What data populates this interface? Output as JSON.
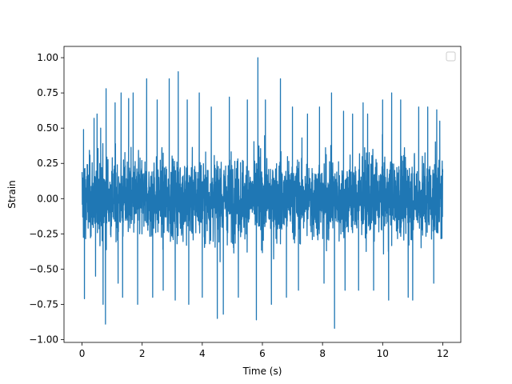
{
  "chart_data": {
    "type": "line",
    "title": "",
    "xlabel": "Time (s)",
    "ylabel": "Strain",
    "xlim": [
      -0.6,
      12.6
    ],
    "ylim": [
      -1.02,
      1.08
    ],
    "xticks": [
      0,
      2,
      4,
      6,
      8,
      10,
      12
    ],
    "xtick_labels": [
      "0",
      "2",
      "4",
      "6",
      "8",
      "10",
      "12"
    ],
    "yticks": [
      -1.0,
      -0.75,
      -0.5,
      -0.25,
      0.0,
      0.25,
      0.5,
      0.75,
      1.0
    ],
    "ytick_labels": [
      "−1.00",
      "−0.75",
      "−0.50",
      "−0.25",
      "0.00",
      "0.25",
      "0.50",
      "0.75",
      "1.00"
    ],
    "grid": false,
    "legend": {
      "position": "upper right",
      "entries": []
    },
    "series": [
      {
        "color": "#1f77b4",
        "x_range": [
          0,
          12
        ],
        "envelope": {
          "typical_upper": 0.5,
          "typical_lower": -0.5,
          "center": 0.0
        },
        "peaks": [
          {
            "x": 0.05,
            "y": 0.49
          },
          {
            "x": 0.08,
            "y": -0.71
          },
          {
            "x": 0.4,
            "y": 0.57
          },
          {
            "x": 0.45,
            "y": -0.55
          },
          {
            "x": 0.5,
            "y": 0.6
          },
          {
            "x": 0.62,
            "y": 0.5
          },
          {
            "x": 0.7,
            "y": -0.75
          },
          {
            "x": 0.78,
            "y": -0.89
          },
          {
            "x": 0.8,
            "y": 0.78
          },
          {
            "x": 1.1,
            "y": 0.68
          },
          {
            "x": 1.2,
            "y": -0.6
          },
          {
            "x": 1.3,
            "y": 0.75
          },
          {
            "x": 1.35,
            "y": -0.7
          },
          {
            "x": 1.55,
            "y": 0.71
          },
          {
            "x": 1.7,
            "y": 0.75
          },
          {
            "x": 1.85,
            "y": -0.75
          },
          {
            "x": 2.15,
            "y": 0.85
          },
          {
            "x": 2.35,
            "y": -0.7
          },
          {
            "x": 2.5,
            "y": 0.7
          },
          {
            "x": 2.7,
            "y": -0.65
          },
          {
            "x": 2.9,
            "y": 0.85
          },
          {
            "x": 3.1,
            "y": -0.72
          },
          {
            "x": 3.2,
            "y": 0.9
          },
          {
            "x": 3.5,
            "y": 0.7
          },
          {
            "x": 3.55,
            "y": -0.75
          },
          {
            "x": 3.9,
            "y": 0.75
          },
          {
            "x": 4.0,
            "y": -0.7
          },
          {
            "x": 4.3,
            "y": 0.65
          },
          {
            "x": 4.5,
            "y": -0.85
          },
          {
            "x": 4.7,
            "y": -0.82
          },
          {
            "x": 4.9,
            "y": 0.72
          },
          {
            "x": 5.2,
            "y": -0.7
          },
          {
            "x": 5.5,
            "y": 0.7
          },
          {
            "x": 5.8,
            "y": -0.86
          },
          {
            "x": 5.85,
            "y": 1.0
          },
          {
            "x": 6.1,
            "y": 0.7
          },
          {
            "x": 6.3,
            "y": -0.75
          },
          {
            "x": 6.6,
            "y": 0.85
          },
          {
            "x": 6.8,
            "y": -0.7
          },
          {
            "x": 7.0,
            "y": 0.65
          },
          {
            "x": 7.2,
            "y": -0.65
          },
          {
            "x": 7.5,
            "y": 0.6
          },
          {
            "x": 7.9,
            "y": 0.65
          },
          {
            "x": 8.05,
            "y": -0.6
          },
          {
            "x": 8.3,
            "y": 0.75
          },
          {
            "x": 8.4,
            "y": -0.92
          },
          {
            "x": 8.7,
            "y": 0.62
          },
          {
            "x": 8.75,
            "y": -0.65
          },
          {
            "x": 9.0,
            "y": 0.6
          },
          {
            "x": 9.2,
            "y": -0.65
          },
          {
            "x": 9.35,
            "y": 0.68
          },
          {
            "x": 9.5,
            "y": 0.6
          },
          {
            "x": 9.7,
            "y": -0.65
          },
          {
            "x": 10.0,
            "y": 0.7
          },
          {
            "x": 10.2,
            "y": -0.72
          },
          {
            "x": 10.3,
            "y": 0.75
          },
          {
            "x": 10.6,
            "y": 0.7
          },
          {
            "x": 10.85,
            "y": -0.7
          },
          {
            "x": 11.0,
            "y": -0.72
          },
          {
            "x": 11.2,
            "y": 0.65
          },
          {
            "x": 11.5,
            "y": 0.65
          },
          {
            "x": 11.7,
            "y": -0.6
          },
          {
            "x": 11.8,
            "y": 0.63
          },
          {
            "x": 11.9,
            "y": 0.55
          }
        ]
      }
    ]
  }
}
